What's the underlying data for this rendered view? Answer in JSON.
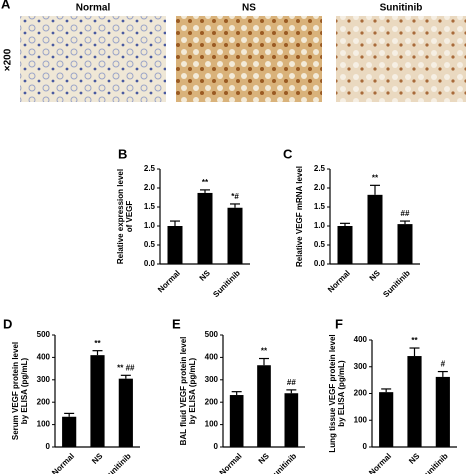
{
  "panel_a": {
    "label": "A",
    "magnification": "×200",
    "titles": [
      "Normal",
      "NS",
      "Sunitinib"
    ]
  },
  "chart_data": [
    {
      "type": "bar",
      "panel": "B",
      "ylabel": [
        "Relative expression level",
        "of VEGF"
      ],
      "categories": [
        "Normal",
        "NS",
        "Sunitinib"
      ],
      "values": [
        1.0,
        1.87,
        1.48
      ],
      "errors": [
        0.13,
        0.08,
        0.1
      ],
      "annotations": [
        null,
        "**",
        "*#"
      ],
      "color": "#000000",
      "ylim": [
        0,
        2.5
      ],
      "yticks": [
        {
          "value": 0,
          "label": "0.0"
        },
        {
          "value": 0.5,
          "label": "0.5"
        },
        {
          "value": 1,
          "label": "1.0"
        },
        {
          "value": 1.5,
          "label": "1.5"
        },
        {
          "value": 2,
          "label": "2.0"
        },
        {
          "value": 2.5,
          "label": "2.5"
        }
      ]
    },
    {
      "type": "bar",
      "panel": "C",
      "ylabel": [
        "Relative VEGF mRNA level"
      ],
      "categories": [
        "Normal",
        "NS",
        "Sunitinib"
      ],
      "values": [
        1.0,
        1.82,
        1.05
      ],
      "errors": [
        0.07,
        0.25,
        0.08
      ],
      "annotations": [
        null,
        "**",
        "##"
      ],
      "color": "#000000",
      "ylim": [
        0,
        2.5
      ],
      "yticks": [
        {
          "value": 0,
          "label": "0.0"
        },
        {
          "value": 0.5,
          "label": "0.5"
        },
        {
          "value": 1,
          "label": "1.0"
        },
        {
          "value": 1.5,
          "label": "1.5"
        },
        {
          "value": 2,
          "label": "2.0"
        },
        {
          "value": 2.5,
          "label": "2.5"
        }
      ]
    },
    {
      "type": "bar",
      "panel": "D",
      "ylabel": [
        "Serum VEGF protein level",
        "by ELISA (pg/mL)"
      ],
      "categories": [
        "Normal",
        "NS",
        "Sunitinib"
      ],
      "values": [
        135,
        410,
        305
      ],
      "errors": [
        15,
        20,
        15
      ],
      "annotations": [
        null,
        "**",
        "** ##"
      ],
      "color": "#000000",
      "ylim": [
        0,
        500
      ],
      "yticks": [
        0,
        100,
        200,
        300,
        400,
        500
      ]
    },
    {
      "type": "bar",
      "panel": "E",
      "ylabel": [
        "BAL fluid VEGF protein level",
        "by ELISA (pg/mL)"
      ],
      "categories": [
        "Normal",
        "NS",
        "Sunitinib"
      ],
      "values": [
        232,
        365,
        240
      ],
      "errors": [
        15,
        30,
        15
      ],
      "annotations": [
        null,
        "**",
        "##"
      ],
      "color": "#000000",
      "ylim": [
        0,
        500
      ],
      "yticks": [
        0,
        100,
        200,
        300,
        400,
        500
      ]
    },
    {
      "type": "bar",
      "panel": "F",
      "ylabel": [
        "Lung tissue VEGF protein level",
        "by ELISA (pg/mL)"
      ],
      "categories": [
        "Normal",
        "NS",
        "Sunitinib"
      ],
      "values": [
        205,
        340,
        262
      ],
      "errors": [
        12,
        30,
        20
      ],
      "annotations": [
        null,
        "**",
        "#"
      ],
      "color": "#000000",
      "ylim": [
        0,
        400
      ],
      "yticks": [
        0,
        100,
        200,
        300,
        400
      ]
    }
  ]
}
